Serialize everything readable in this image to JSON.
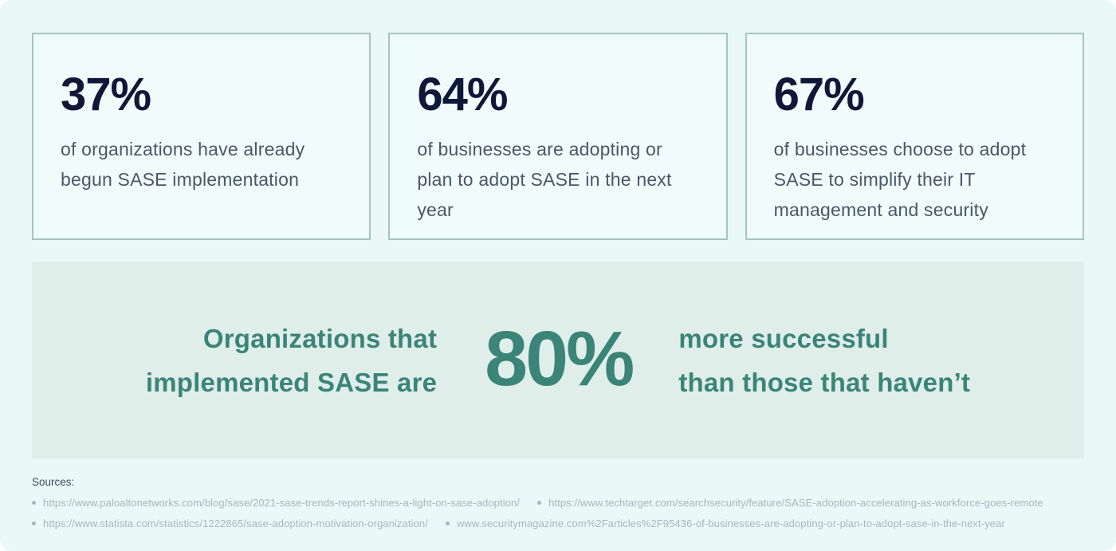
{
  "theme": {
    "page_bg": "#eaf8f7",
    "card_bg": "#f0fcfb",
    "card_border": "#a3c6bf",
    "banner_bg": "#e0eeea",
    "stat_number_color": "#0f1838",
    "stat_text_color": "#4a5768",
    "accent_teal": "#3a8577",
    "source_label_color": "#3d4c5d",
    "source_link_color": "#a8b5be"
  },
  "stat_cards": [
    {
      "value": "37%",
      "description": "of organizations have already begun SASE implementation"
    },
    {
      "value": "64%",
      "description": "of businesses are adopting or plan to adopt SASE in the next year"
    },
    {
      "value": "67%",
      "description": "of businesses choose to adopt SASE to simplify their IT management and security"
    }
  ],
  "highlight": {
    "lead_line1": "Organizations that",
    "lead_line2": "implemented SASE are",
    "value": "80%",
    "trail_line1": "more successful",
    "trail_line2": "than those that haven’t"
  },
  "sources": {
    "label": "Sources:",
    "rows": [
      [
        "https://www.paloaltonetworks.com/blog/sase/2021-sase-trends-report-shines-a-light-on-sase-adoption/",
        "https://www.techtarget.com/searchsecurity/feature/SASE-adoption-accelerating-as-workforce-goes-remote"
      ],
      [
        "https://www.statista.com/statistics/1222865/sase-adoption-motivation-organization/",
        "www.securitymagazine.com%2Farticles%2F95436-of-businesses-are-adopting-or-plan-to-adopt-sase-in-the-next-year"
      ]
    ]
  }
}
